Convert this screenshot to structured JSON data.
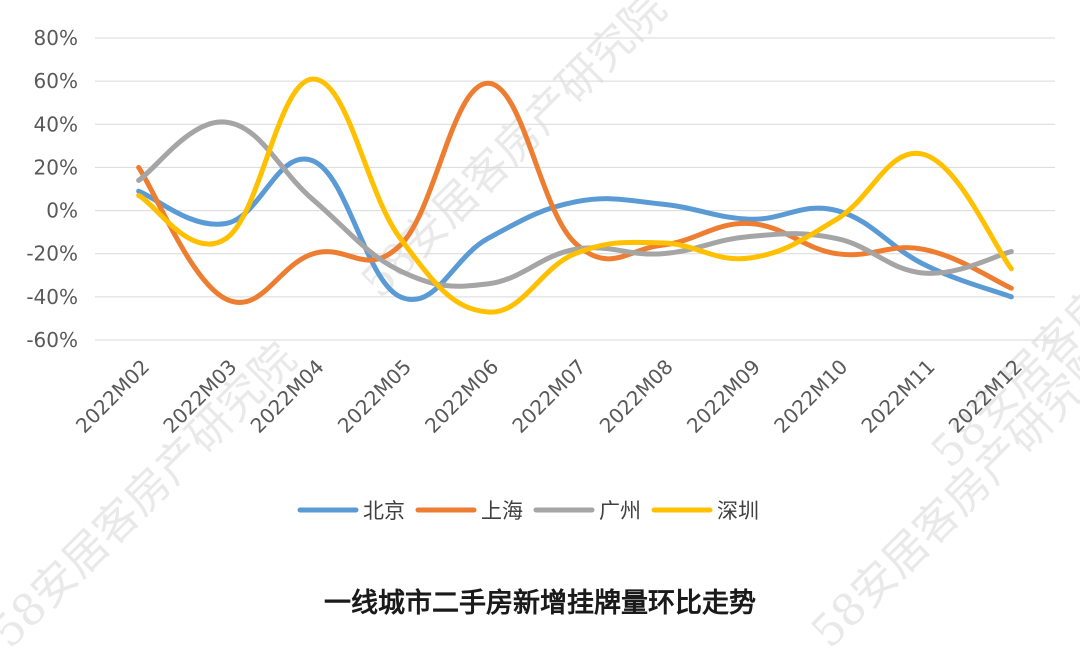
{
  "watermark": {
    "text_1": "58安居客房产研究院",
    "text_2": "58安居客房产研究院",
    "text_3": "58安居客房产研究院",
    "text_4": "58安居客房产研"
  },
  "chart_data": {
    "type": "line",
    "title": "一线城市二手房新增挂牌量环比走势",
    "xlabel": "",
    "ylabel": "",
    "categories": [
      "2022M02",
      "2022M03",
      "2022M04",
      "2022M05",
      "2022M06",
      "2022M07",
      "2022M08",
      "2022M09",
      "2022M10",
      "2022M11",
      "2022M12"
    ],
    "ylim": [
      -60,
      80
    ],
    "yticks": [
      80,
      60,
      40,
      20,
      0,
      -20,
      -40,
      -60
    ],
    "ytick_labels": [
      "80%",
      "60%",
      "40%",
      "20%",
      "0%",
      "-20%",
      "-40%",
      "-60%"
    ],
    "grid": true,
    "legend_position": "bottom",
    "smooth": true,
    "series": [
      {
        "name": "北京",
        "color": "#5B9BD5",
        "values": [
          9,
          -6,
          23,
          -40,
          -13,
          4,
          3,
          -4,
          0,
          -25,
          -40
        ]
      },
      {
        "name": "上海",
        "color": "#ED7D31",
        "values": [
          20,
          -41,
          -20,
          -16,
          59,
          -15,
          -16,
          -6,
          -20,
          -18,
          -36
        ]
      },
      {
        "name": "广州",
        "color": "#A5A5A5",
        "values": [
          14,
          41,
          5,
          -28,
          -34,
          -18,
          -20,
          -12,
          -13,
          -29,
          -19
        ]
      },
      {
        "name": "深圳",
        "color": "#FFC000",
        "values": [
          7,
          -13,
          61,
          -13,
          -47,
          -20,
          -15,
          -22,
          -4,
          26,
          -27
        ]
      }
    ]
  }
}
